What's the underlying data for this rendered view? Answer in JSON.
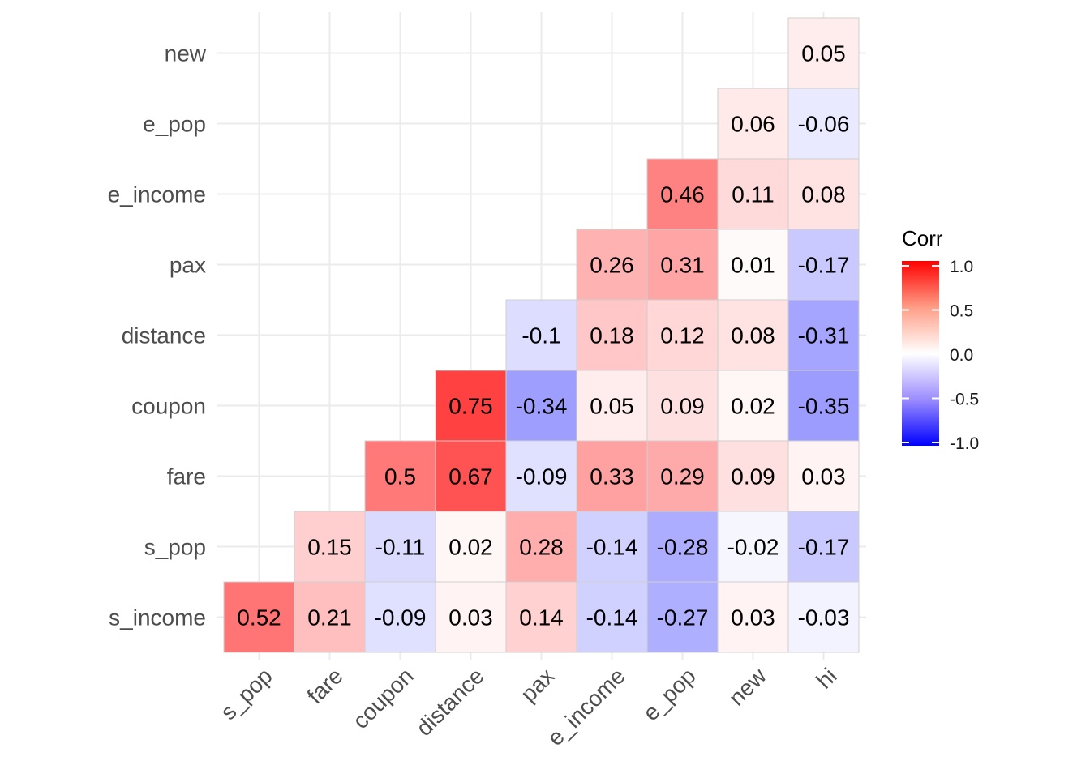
{
  "chart_data": {
    "type": "heatmap",
    "x_categories": [
      "s_pop",
      "fare",
      "coupon",
      "distance",
      "pax",
      "e_income",
      "e_pop",
      "new",
      "hi"
    ],
    "y_categories": [
      "s_income",
      "s_pop",
      "fare",
      "coupon",
      "distance",
      "pax",
      "e_income",
      "e_pop",
      "new"
    ],
    "cells": [
      {
        "x": "s_pop",
        "y": "s_income",
        "value": 0.52,
        "label": "0.52"
      },
      {
        "x": "fare",
        "y": "s_income",
        "value": 0.21,
        "label": "0.21"
      },
      {
        "x": "coupon",
        "y": "s_income",
        "value": -0.09,
        "label": "-0.09"
      },
      {
        "x": "distance",
        "y": "s_income",
        "value": 0.03,
        "label": "0.03"
      },
      {
        "x": "pax",
        "y": "s_income",
        "value": 0.14,
        "label": "0.14"
      },
      {
        "x": "e_income",
        "y": "s_income",
        "value": -0.14,
        "label": "-0.14"
      },
      {
        "x": "e_pop",
        "y": "s_income",
        "value": -0.27,
        "label": "-0.27"
      },
      {
        "x": "new",
        "y": "s_income",
        "value": 0.03,
        "label": "0.03"
      },
      {
        "x": "hi",
        "y": "s_income",
        "value": -0.03,
        "label": "-0.03"
      },
      {
        "x": "fare",
        "y": "s_pop",
        "value": 0.15,
        "label": "0.15"
      },
      {
        "x": "coupon",
        "y": "s_pop",
        "value": -0.11,
        "label": "-0.11"
      },
      {
        "x": "distance",
        "y": "s_pop",
        "value": 0.02,
        "label": "0.02"
      },
      {
        "x": "pax",
        "y": "s_pop",
        "value": 0.28,
        "label": "0.28"
      },
      {
        "x": "e_income",
        "y": "s_pop",
        "value": -0.14,
        "label": "-0.14"
      },
      {
        "x": "e_pop",
        "y": "s_pop",
        "value": -0.28,
        "label": "-0.28"
      },
      {
        "x": "new",
        "y": "s_pop",
        "value": -0.02,
        "label": "-0.02"
      },
      {
        "x": "hi",
        "y": "s_pop",
        "value": -0.17,
        "label": "-0.17"
      },
      {
        "x": "coupon",
        "y": "fare",
        "value": 0.5,
        "label": "0.5"
      },
      {
        "x": "distance",
        "y": "fare",
        "value": 0.67,
        "label": "0.67"
      },
      {
        "x": "pax",
        "y": "fare",
        "value": -0.09,
        "label": "-0.09"
      },
      {
        "x": "e_income",
        "y": "fare",
        "value": 0.33,
        "label": "0.33"
      },
      {
        "x": "e_pop",
        "y": "fare",
        "value": 0.29,
        "label": "0.29"
      },
      {
        "x": "new",
        "y": "fare",
        "value": 0.09,
        "label": "0.09"
      },
      {
        "x": "hi",
        "y": "fare",
        "value": 0.03,
        "label": "0.03"
      },
      {
        "x": "distance",
        "y": "coupon",
        "value": 0.75,
        "label": "0.75"
      },
      {
        "x": "pax",
        "y": "coupon",
        "value": -0.34,
        "label": "-0.34"
      },
      {
        "x": "e_income",
        "y": "coupon",
        "value": 0.05,
        "label": "0.05"
      },
      {
        "x": "e_pop",
        "y": "coupon",
        "value": 0.09,
        "label": "0.09"
      },
      {
        "x": "new",
        "y": "coupon",
        "value": 0.02,
        "label": "0.02"
      },
      {
        "x": "hi",
        "y": "coupon",
        "value": -0.35,
        "label": "-0.35"
      },
      {
        "x": "pax",
        "y": "distance",
        "value": -0.1,
        "label": "-0.1"
      },
      {
        "x": "e_income",
        "y": "distance",
        "value": 0.18,
        "label": "0.18"
      },
      {
        "x": "e_pop",
        "y": "distance",
        "value": 0.12,
        "label": "0.12"
      },
      {
        "x": "new",
        "y": "distance",
        "value": 0.08,
        "label": "0.08"
      },
      {
        "x": "hi",
        "y": "distance",
        "value": -0.31,
        "label": "-0.31"
      },
      {
        "x": "e_income",
        "y": "pax",
        "value": 0.26,
        "label": "0.26"
      },
      {
        "x": "e_pop",
        "y": "pax",
        "value": 0.31,
        "label": "0.31"
      },
      {
        "x": "new",
        "y": "pax",
        "value": 0.01,
        "label": "0.01"
      },
      {
        "x": "hi",
        "y": "pax",
        "value": -0.17,
        "label": "-0.17"
      },
      {
        "x": "e_pop",
        "y": "e_income",
        "value": 0.46,
        "label": "0.46"
      },
      {
        "x": "new",
        "y": "e_income",
        "value": 0.11,
        "label": "0.11"
      },
      {
        "x": "hi",
        "y": "e_income",
        "value": 0.08,
        "label": "0.08"
      },
      {
        "x": "new",
        "y": "e_pop",
        "value": 0.06,
        "label": "0.06"
      },
      {
        "x": "hi",
        "y": "e_pop",
        "value": -0.06,
        "label": "-0.06"
      },
      {
        "x": "hi",
        "y": "new",
        "value": 0.05,
        "label": "0.05"
      }
    ],
    "legend": {
      "title": "Corr",
      "ticks": [
        "1.0",
        "0.5",
        "0.0",
        "-0.5",
        "-1.0"
      ],
      "tick_values": [
        1.0,
        0.5,
        0.0,
        -0.5,
        -1.0
      ],
      "range": [
        -1.0,
        1.0
      ],
      "placement": "right"
    },
    "colors": {
      "low": "#0000ff",
      "mid": "#ffffff",
      "high": "#ff0000"
    },
    "grid": true
  }
}
